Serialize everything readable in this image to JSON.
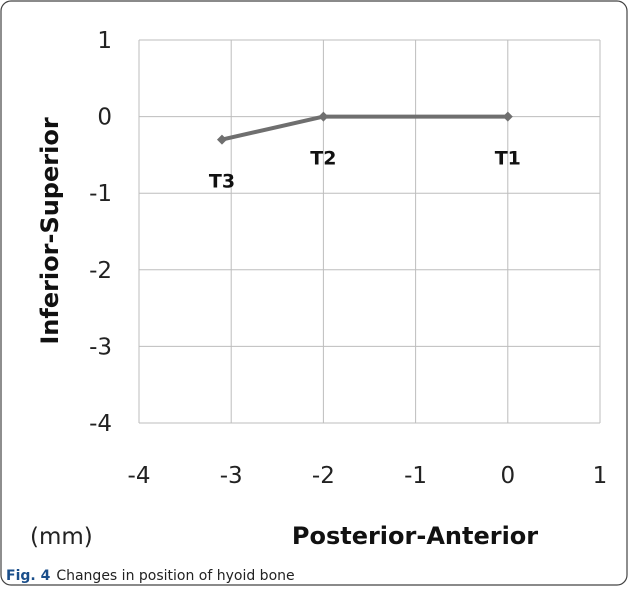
{
  "chart_data": {
    "type": "line",
    "title": "",
    "xlabel": "Posterior-Anterior",
    "ylabel": "Inferior-Superior",
    "unit_label": "(mm)",
    "xlim": [
      -4,
      1
    ],
    "ylim": [
      -4,
      1
    ],
    "xticks": [
      -4,
      -3,
      -2,
      -1,
      0,
      1
    ],
    "yticks": [
      1,
      0,
      -1,
      -2,
      -3,
      -4
    ],
    "grid": true,
    "legend": "none",
    "series": [
      {
        "color": "#6f6f6f",
        "points": [
          {
            "label": "T1",
            "x": 0,
            "y": 0
          },
          {
            "label": "T2",
            "x": -2,
            "y": 0
          },
          {
            "label": "T3",
            "x": -3.1,
            "y": -0.3
          }
        ]
      }
    ]
  },
  "caption": {
    "label": "Fig. 4",
    "text": "Changes in position of hyoid bone"
  }
}
